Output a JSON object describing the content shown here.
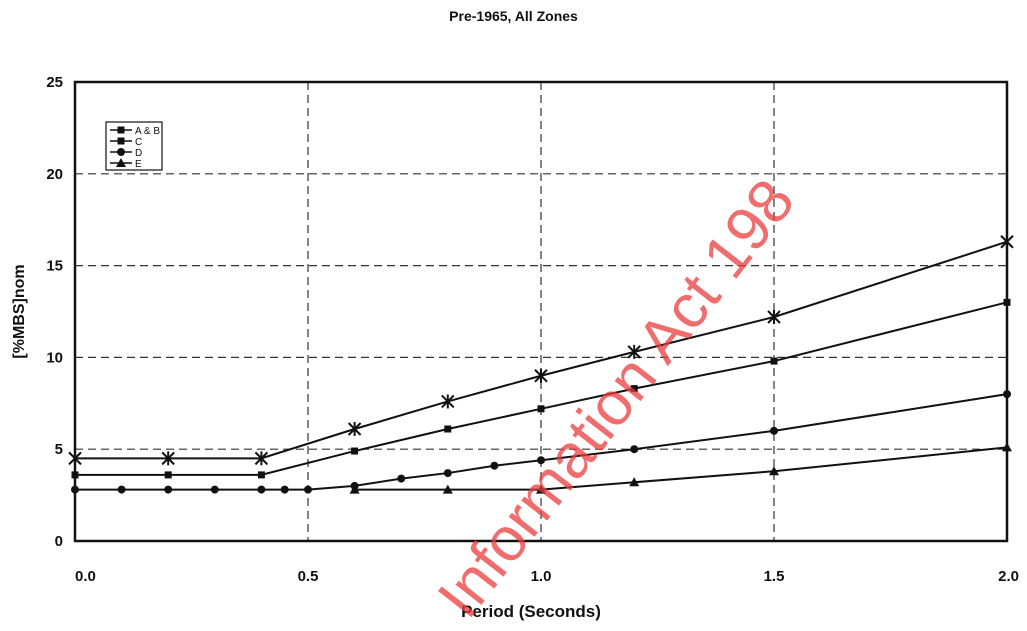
{
  "chart_data": {
    "type": "line",
    "title": "Pre-1965, All Zones",
    "xlabel": "Period (Seconds)",
    "ylabel": "[%MBS]nom",
    "xlim": [
      0,
      2
    ],
    "ylim": [
      0,
      25
    ],
    "x_ticks": [
      "0.0",
      "0.5",
      "1.0",
      "1.5",
      "2.0"
    ],
    "y_ticks": [
      "0",
      "5",
      "10",
      "15",
      "20",
      "25"
    ],
    "grid": true,
    "legend_position": "top-left",
    "series": [
      {
        "name": "A & B",
        "marker": "star",
        "x": [
          0.0,
          0.2,
          0.4,
          0.6,
          0.8,
          1.0,
          1.2,
          1.5,
          2.0
        ],
        "y": [
          4.5,
          4.5,
          4.5,
          6.1,
          7.6,
          9.0,
          10.3,
          12.2,
          16.3
        ]
      },
      {
        "name": "C",
        "marker": "square",
        "x": [
          0.0,
          0.2,
          0.4,
          0.6,
          0.8,
          1.0,
          1.2,
          1.5,
          2.0
        ],
        "y": [
          3.6,
          3.6,
          3.6,
          4.9,
          6.1,
          7.2,
          8.3,
          9.8,
          13.0
        ]
      },
      {
        "name": "D",
        "marker": "circle",
        "x": [
          0.0,
          0.1,
          0.2,
          0.3,
          0.4,
          0.45,
          0.5,
          0.6,
          0.7,
          0.8,
          0.9,
          1.0,
          1.2,
          1.5,
          2.0
        ],
        "y": [
          2.8,
          2.8,
          2.8,
          2.8,
          2.8,
          2.8,
          2.8,
          3.0,
          3.4,
          3.7,
          4.1,
          4.4,
          5.0,
          6.0,
          8.0
        ]
      },
      {
        "name": "E",
        "marker": "triangle",
        "x": [
          0.6,
          0.8,
          1.0,
          1.2,
          1.5,
          2.0
        ],
        "y": [
          2.8,
          2.8,
          2.8,
          3.2,
          3.8,
          5.1
        ]
      }
    ]
  },
  "watermark": "Information Act 198"
}
